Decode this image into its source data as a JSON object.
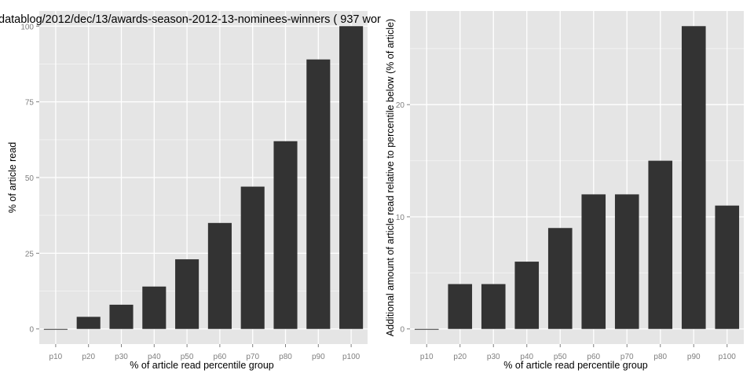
{
  "colors": {
    "panel_bg": "#e5e5e5",
    "grid_major": "#ffffff",
    "grid_minor": "#f2f2f2",
    "bar_fill": "#333333",
    "tick_text": "#7f7f7f",
    "label_text": "#000000"
  },
  "chart_data": [
    {
      "type": "bar",
      "title": "datablog/2012/dec/13/awards-season-2012-13-nominees-winners ( 937 wor",
      "xlabel": "% of article read percentile group",
      "ylabel": "% of article read",
      "categories": [
        "p10",
        "p20",
        "p30",
        "p40",
        "p50",
        "p60",
        "p70",
        "p80",
        "p90",
        "p100"
      ],
      "values": [
        0,
        4,
        8,
        14,
        23,
        35,
        47,
        62,
        89,
        100
      ],
      "ylim": [
        -5,
        105
      ],
      "yticks": [
        0,
        25,
        50,
        75,
        100
      ],
      "ytick_labels": [
        "0",
        "25",
        "50",
        "75",
        "100"
      ],
      "grid": true
    },
    {
      "type": "bar",
      "title": "",
      "xlabel": "% of article read percentile group",
      "ylabel": "Additional amount of article read relative to percentile below (% of article)",
      "categories": [
        "p10",
        "p20",
        "p30",
        "p40",
        "p50",
        "p60",
        "p70",
        "p80",
        "p90",
        "p100"
      ],
      "values": [
        0,
        4,
        4,
        6,
        9,
        12,
        12,
        15,
        27,
        11
      ],
      "ylim": [
        -1.35,
        28.35
      ],
      "yticks": [
        0,
        10,
        20
      ],
      "ytick_labels": [
        "0",
        "10",
        "20"
      ],
      "grid": true
    }
  ]
}
